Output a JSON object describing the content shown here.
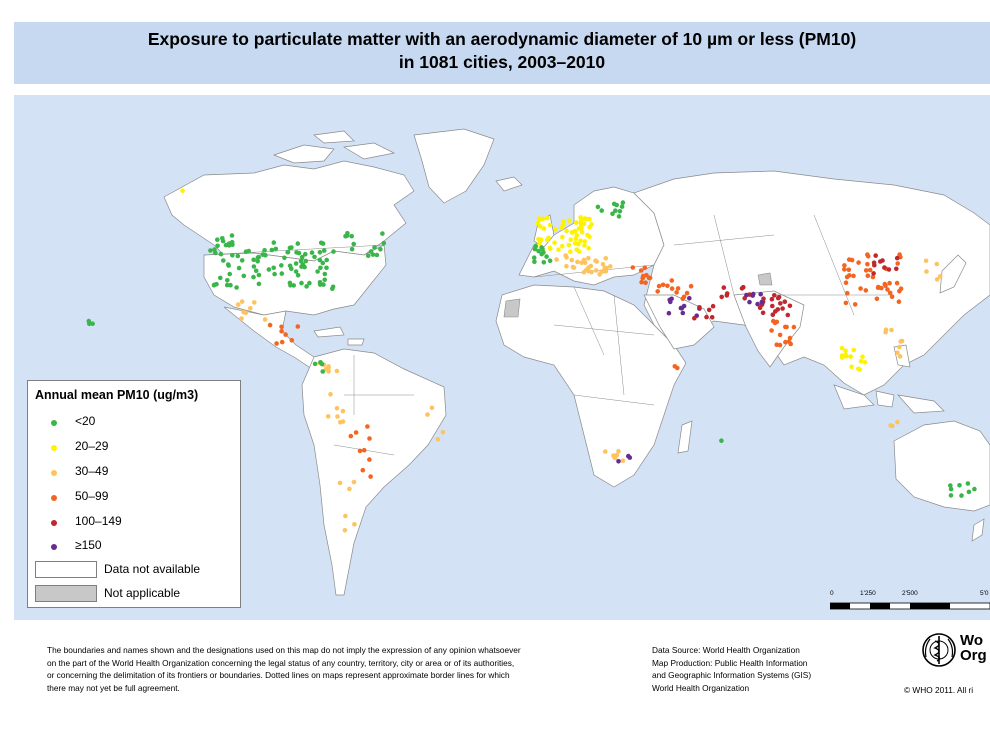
{
  "title": {
    "line1": "Exposure to particulate matter with an aerodynamic diameter of 10 µm or less (PM10)",
    "line2": "in 1081 cities, 2003–2010"
  },
  "legend": {
    "title": "Annual mean PM10 (ug/m3)",
    "classes": [
      {
        "key": "lt20",
        "label": "<20",
        "color": "#3ab54a"
      },
      {
        "key": "c20_29",
        "label": "20–29",
        "color": "#fff200"
      },
      {
        "key": "c30_49",
        "label": "30–49",
        "color": "#fdc35e"
      },
      {
        "key": "c50_99",
        "label": "50–99",
        "color": "#f26522"
      },
      {
        "key": "c100_149",
        "label": "100–149",
        "color": "#c1272d"
      },
      {
        "key": "ge150",
        "label": "≥150",
        "color": "#662d91"
      }
    ],
    "no_data_label": "Data not available",
    "na_label": "Not applicable",
    "no_data_color": "#ffffff",
    "na_color": "#c8c8c8"
  },
  "scale": {
    "ticks": [
      "0",
      "1'250",
      "2'500",
      "5'0"
    ]
  },
  "footer": {
    "disclaimer": [
      "The boundaries and names shown and the designations used on this map do not imply the expression of any opinion whatsoever",
      "on the part of the World Health Organization concerning the legal status of any country, territory, city or area or of its authorities,",
      "or concerning the delimitation of its frontiers or boundaries.  Dotted lines on maps represent approximate border lines for which",
      "there may not yet be full agreement."
    ],
    "source": [
      "Data Source: World Health Organization",
      "Map Production: Public Health Information",
      "and Geographic Information Systems (GIS)",
      "World Health Organization"
    ],
    "org_name": [
      "Wo",
      "Org"
    ],
    "copyright": "© WHO 2011. All ri"
  },
  "colors": {
    "ocean": "#d4e2f6",
    "title_band": "#c6d9f1"
  }
}
